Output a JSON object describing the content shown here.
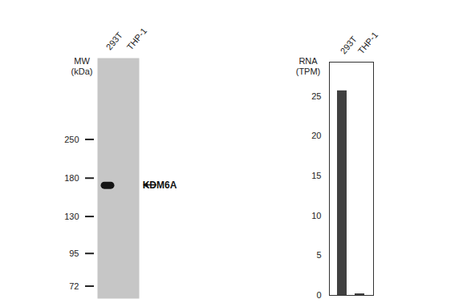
{
  "blot": {
    "lanes": [
      "293T",
      "THP-1"
    ],
    "mw_label": [
      "MW",
      "(kDa)"
    ],
    "mw_markers": [
      250,
      180,
      130,
      95,
      72
    ],
    "mw_range": [
      65,
      500
    ],
    "log": true,
    "band": {
      "label": "KDM6A",
      "kda": 170,
      "lane": "293T"
    }
  },
  "chart_data": {
    "type": "bar",
    "categories": [
      "293T",
      "THP-1"
    ],
    "values": [
      25.7,
      0.2
    ],
    "color": "#404040",
    "y_label": [
      "RNA",
      "(TPM)"
    ],
    "ylim": [
      0,
      29.3
    ],
    "yticks": [
      0,
      5,
      10,
      15,
      20,
      25
    ],
    "grid": false
  }
}
